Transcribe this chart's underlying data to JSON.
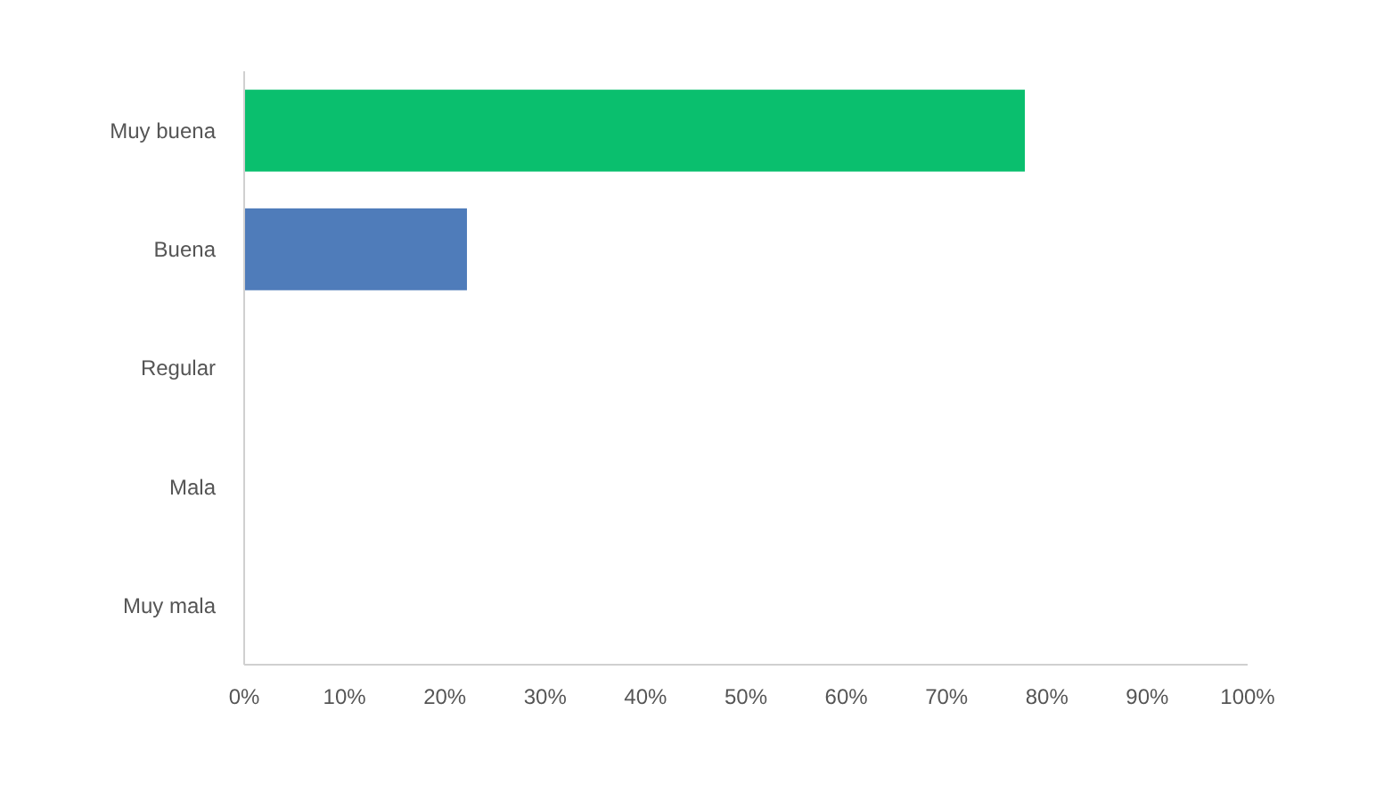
{
  "chart_data": {
    "type": "bar",
    "orientation": "horizontal",
    "categories": [
      "Muy buena",
      "Buena",
      "Regular",
      "Mala",
      "Muy mala"
    ],
    "values": [
      77.8,
      22.2,
      0,
      0,
      0
    ],
    "colors": [
      "#0abf6e",
      "#4f7cba",
      "#e8a33a",
      "#d9534f",
      "#8e8e8e"
    ],
    "xlim": [
      0,
      100
    ],
    "xticks": [
      {
        "value": 0,
        "label": "0%"
      },
      {
        "value": 10,
        "label": "10%"
      },
      {
        "value": 20,
        "label": "20%"
      },
      {
        "value": 30,
        "label": "30%"
      },
      {
        "value": 40,
        "label": "40%"
      },
      {
        "value": 50,
        "label": "50%"
      },
      {
        "value": 60,
        "label": "60%"
      },
      {
        "value": 70,
        "label": "70%"
      },
      {
        "value": 80,
        "label": "80%"
      },
      {
        "value": 90,
        "label": "90%"
      },
      {
        "value": 100,
        "label": "100%"
      }
    ],
    "grid": false
  }
}
